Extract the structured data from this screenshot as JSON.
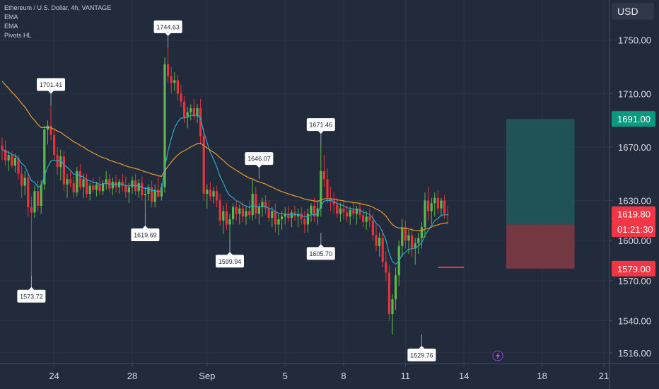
{
  "header": {
    "symbol": "Ethereum / U.S. Dollar, 4h, VANTAGE",
    "indicators": [
      "EMA",
      "EMA",
      "Pivots HL"
    ],
    "currency": "USD"
  },
  "chart_data": {
    "type": "candlestick",
    "ylim": [
      1508,
      1780
    ],
    "y_ticks": [
      "1750.00",
      "1710.00",
      "1670.00",
      "1630.00",
      "1600.00",
      "1570.00",
      "1540.00",
      "1516.00"
    ],
    "x_ticks": [
      {
        "label": "24",
        "bar": 16
      },
      {
        "label": "28",
        "bar": 40
      },
      {
        "label": "Sep",
        "bar": 63
      },
      {
        "label": "5",
        "bar": 87
      },
      {
        "label": "8",
        "bar": 105
      },
      {
        "label": "11",
        "bar": 124
      },
      {
        "label": "14",
        "bar": 142
      },
      {
        "label": "18",
        "bar": 166
      },
      {
        "label": "21",
        "bar": 185
      }
    ],
    "pivots": [
      {
        "label": "1701.41",
        "bar": 15,
        "price": 1701.41,
        "kind": "high"
      },
      {
        "label": "1573.72",
        "bar": 9,
        "price": 1573.72,
        "kind": "low"
      },
      {
        "label": "1744.63",
        "bar": 51,
        "price": 1744.63,
        "kind": "high"
      },
      {
        "label": "1619.69",
        "bar": 44,
        "price": 1619.69,
        "kind": "low"
      },
      {
        "label": "1646.07",
        "bar": 79,
        "price": 1646.07,
        "kind": "high"
      },
      {
        "label": "1599.94",
        "bar": 70,
        "price": 1599.94,
        "kind": "low"
      },
      {
        "label": "1671.46",
        "bar": 98,
        "price": 1671.46,
        "kind": "high"
      },
      {
        "label": "1605.70",
        "bar": 98,
        "price": 1605.7,
        "kind": "low"
      },
      {
        "label": "1529.76",
        "bar": 129,
        "price": 1529.76,
        "kind": "low"
      }
    ],
    "price_badges": [
      {
        "label": "1691.00",
        "price": 1691.0,
        "color": "#0b9981"
      },
      {
        "label": "1619.80",
        "price": 1619.8,
        "color": "#f23645"
      },
      {
        "label": "01:21:30",
        "price": 1608.5,
        "color": "#f23645"
      },
      {
        "label": "1579.00",
        "price": 1579.0,
        "color": "#f23645"
      }
    ],
    "position": {
      "entry": 1612,
      "target": 1691,
      "stop": 1579,
      "start_bar": 155,
      "end_bar": 176
    },
    "stop_line": {
      "price": 1580,
      "start_bar": 134,
      "end_bar": 142
    },
    "colors": {
      "up": "#5fb84a",
      "down": "#e8323c",
      "ema_fast": "#2aa7c9",
      "ema_slow": "#e79a2f",
      "target": "#1f5a5e",
      "stop": "#7d3a44"
    },
    "candles": [
      [
        1671,
        1677,
        1660,
        1668
      ],
      [
        1668,
        1675,
        1656,
        1660
      ],
      [
        1660,
        1667,
        1652,
        1664
      ],
      [
        1664,
        1667,
        1654,
        1656
      ],
      [
        1656,
        1665,
        1651,
        1662
      ],
      [
        1662,
        1664,
        1646,
        1650
      ],
      [
        1650,
        1656,
        1632,
        1641
      ],
      [
        1641,
        1652,
        1634,
        1647
      ],
      [
        1647,
        1650,
        1618,
        1625
      ],
      [
        1625,
        1633,
        1573.72,
        1621
      ],
      [
        1621,
        1641,
        1617,
        1637
      ],
      [
        1637,
        1645,
        1622,
        1626
      ],
      [
        1626,
        1645,
        1620,
        1642
      ],
      [
        1642,
        1686,
        1638,
        1683
      ],
      [
        1683,
        1690,
        1672,
        1686
      ],
      [
        1686,
        1701.41,
        1675,
        1679
      ],
      [
        1679,
        1684,
        1660,
        1664
      ],
      [
        1664,
        1670,
        1649,
        1655
      ],
      [
        1655,
        1668,
        1645,
        1663
      ],
      [
        1663,
        1667,
        1637,
        1642
      ],
      [
        1642,
        1650,
        1632,
        1646
      ],
      [
        1646,
        1652,
        1640,
        1643
      ],
      [
        1643,
        1648,
        1632,
        1636
      ],
      [
        1636,
        1655,
        1633,
        1652
      ],
      [
        1652,
        1657,
        1638,
        1640
      ],
      [
        1640,
        1650,
        1632,
        1646
      ],
      [
        1646,
        1650,
        1632,
        1635
      ],
      [
        1635,
        1643,
        1630,
        1641
      ],
      [
        1641,
        1647,
        1636,
        1638
      ],
      [
        1638,
        1644,
        1633,
        1642
      ],
      [
        1642,
        1648,
        1634,
        1637
      ],
      [
        1637,
        1645,
        1634,
        1643
      ],
      [
        1643,
        1652,
        1638,
        1646
      ],
      [
        1646,
        1650,
        1636,
        1639
      ],
      [
        1639,
        1647,
        1634,
        1644
      ],
      [
        1644,
        1649,
        1636,
        1640
      ],
      [
        1640,
        1646,
        1635,
        1644
      ],
      [
        1644,
        1650,
        1637,
        1641
      ],
      [
        1641,
        1648,
        1632,
        1636
      ],
      [
        1636,
        1643,
        1628,
        1640
      ],
      [
        1640,
        1648,
        1635,
        1645
      ],
      [
        1645,
        1650,
        1634,
        1637
      ],
      [
        1637,
        1646,
        1632,
        1643
      ],
      [
        1643,
        1648,
        1630,
        1634
      ],
      [
        1634,
        1640,
        1619.69,
        1635
      ],
      [
        1635,
        1642,
        1630,
        1640
      ],
      [
        1640,
        1645,
        1625,
        1629
      ],
      [
        1629,
        1642,
        1625,
        1638
      ],
      [
        1638,
        1648,
        1632,
        1633
      ],
      [
        1633,
        1643,
        1630,
        1640
      ],
      [
        1640,
        1737,
        1636,
        1732
      ],
      [
        1732,
        1744.63,
        1718,
        1723
      ],
      [
        1723,
        1730,
        1710,
        1718
      ],
      [
        1718,
        1726,
        1712,
        1720
      ],
      [
        1720,
        1724,
        1705,
        1710
      ],
      [
        1710,
        1716,
        1700,
        1704
      ],
      [
        1704,
        1708,
        1688,
        1692
      ],
      [
        1692,
        1700,
        1684,
        1696
      ],
      [
        1696,
        1702,
        1690,
        1699
      ],
      [
        1699,
        1706,
        1690,
        1693
      ],
      [
        1693,
        1702,
        1688,
        1699
      ],
      [
        1699,
        1706,
        1672,
        1678
      ],
      [
        1678,
        1684,
        1630,
        1635
      ],
      [
        1635,
        1642,
        1624,
        1638
      ],
      [
        1638,
        1644,
        1630,
        1633
      ],
      [
        1633,
        1640,
        1628,
        1637
      ],
      [
        1637,
        1641,
        1625,
        1630
      ],
      [
        1630,
        1635,
        1611,
        1615
      ],
      [
        1615,
        1626,
        1605,
        1622
      ],
      [
        1622,
        1628,
        1608,
        1612
      ],
      [
        1612,
        1620,
        1599.94,
        1616
      ],
      [
        1616,
        1628,
        1612,
        1625
      ],
      [
        1625,
        1630,
        1615,
        1620
      ],
      [
        1620,
        1627,
        1612,
        1624
      ],
      [
        1624,
        1629,
        1614,
        1618
      ],
      [
        1618,
        1626,
        1612,
        1622
      ],
      [
        1622,
        1630,
        1616,
        1619
      ],
      [
        1619,
        1646.07,
        1615,
        1635
      ],
      [
        1635,
        1640,
        1616,
        1620
      ],
      [
        1620,
        1628,
        1612,
        1625
      ],
      [
        1625,
        1632,
        1618,
        1629
      ],
      [
        1629,
        1634,
        1620,
        1624
      ],
      [
        1624,
        1630,
        1614,
        1617
      ],
      [
        1617,
        1625,
        1610,
        1622
      ],
      [
        1622,
        1628,
        1606,
        1612
      ],
      [
        1612,
        1620,
        1604,
        1616
      ],
      [
        1616,
        1622,
        1608,
        1618
      ],
      [
        1618,
        1625,
        1612,
        1620
      ],
      [
        1620,
        1626,
        1614,
        1617
      ],
      [
        1617,
        1623,
        1610,
        1621
      ],
      [
        1621,
        1626,
        1615,
        1618
      ],
      [
        1618,
        1624,
        1610,
        1620
      ],
      [
        1620,
        1625,
        1612,
        1616
      ],
      [
        1616,
        1622,
        1605.7,
        1612
      ],
      [
        1612,
        1624,
        1606,
        1620
      ],
      [
        1620,
        1628,
        1614,
        1626
      ],
      [
        1626,
        1632,
        1614,
        1618
      ],
      [
        1618,
        1630,
        1612,
        1624
      ],
      [
        1624,
        1671.46,
        1618,
        1652
      ],
      [
        1652,
        1664,
        1640,
        1646
      ],
      [
        1646,
        1654,
        1628,
        1632
      ],
      [
        1632,
        1640,
        1622,
        1630
      ],
      [
        1630,
        1636,
        1620,
        1627
      ],
      [
        1627,
        1632,
        1617,
        1620
      ],
      [
        1620,
        1628,
        1614,
        1624
      ],
      [
        1624,
        1630,
        1616,
        1621
      ],
      [
        1621,
        1626,
        1614,
        1618
      ],
      [
        1618,
        1625,
        1612,
        1623
      ],
      [
        1623,
        1628,
        1616,
        1620
      ],
      [
        1620,
        1626,
        1612,
        1624
      ],
      [
        1624,
        1629,
        1616,
        1619
      ],
      [
        1619,
        1624,
        1610,
        1614
      ],
      [
        1614,
        1622,
        1608,
        1618
      ],
      [
        1618,
        1624,
        1610,
        1615
      ],
      [
        1615,
        1620,
        1600,
        1604
      ],
      [
        1604,
        1612,
        1592,
        1596
      ],
      [
        1596,
        1606,
        1588,
        1602
      ],
      [
        1602,
        1608,
        1580,
        1584
      ],
      [
        1584,
        1592,
        1570,
        1576
      ],
      [
        1576,
        1582,
        1540,
        1545
      ],
      [
        1545,
        1560,
        1529.76,
        1556
      ],
      [
        1556,
        1580,
        1548,
        1574
      ],
      [
        1574,
        1600,
        1566,
        1596
      ],
      [
        1596,
        1616,
        1588,
        1610
      ],
      [
        1610,
        1615,
        1594,
        1600
      ],
      [
        1600,
        1608,
        1590,
        1604
      ],
      [
        1604,
        1610,
        1588,
        1594
      ],
      [
        1594,
        1602,
        1582,
        1598
      ],
      [
        1598,
        1606,
        1590,
        1602
      ],
      [
        1602,
        1614,
        1594,
        1610
      ],
      [
        1610,
        1636,
        1602,
        1630
      ],
      [
        1630,
        1640,
        1615,
        1622
      ],
      [
        1622,
        1632,
        1612,
        1628
      ],
      [
        1628,
        1636,
        1618,
        1632
      ],
      [
        1632,
        1638,
        1620,
        1624
      ],
      [
        1624,
        1632,
        1618,
        1630
      ],
      [
        1630,
        1634,
        1616,
        1620
      ],
      [
        1620,
        1626,
        1612,
        1619.8
      ]
    ]
  }
}
